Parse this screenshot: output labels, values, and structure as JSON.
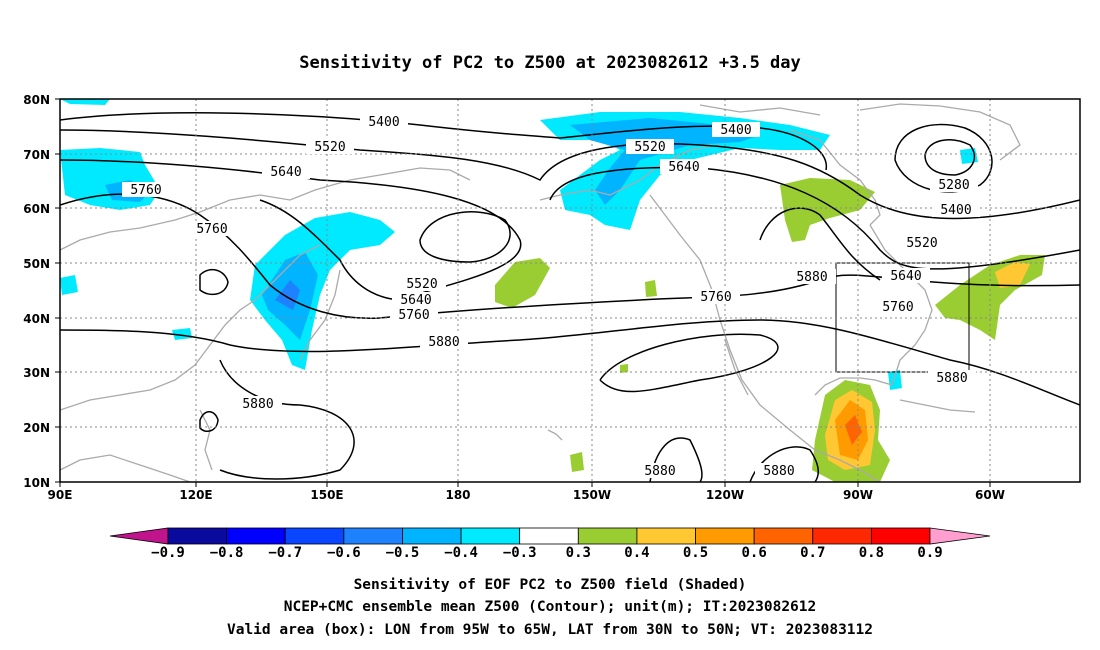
{
  "title": "Sensitivity of PC2 to Z500 at 2023082612 +3.5 day",
  "lat_ticks": [
    "80N",
    "70N",
    "60N",
    "50N",
    "40N",
    "30N",
    "20N",
    "10N"
  ],
  "lon_ticks": [
    "90E",
    "120E",
    "150E",
    "180",
    "150W",
    "120W",
    "90W",
    "60W"
  ],
  "contour_labels": {
    "c5400a": "5400",
    "c5400b": "5400",
    "c5400c": "5400",
    "c5520a": "5520",
    "c5520b": "5520",
    "c5520c": "5520",
    "c5520d": "5520",
    "c5640a": "5640",
    "c5640b": "5640",
    "c5640c": "5640",
    "c5640d": "5640",
    "c5760a": "5760",
    "c5760b": "5760",
    "c5760c": "5760",
    "c5760d": "5760",
    "c5760e": "5760",
    "c5880a": "5880",
    "c5880b": "5880",
    "c5880c": "5880",
    "c5880d": "5880",
    "c5880e": "5880",
    "c5880f": "5880",
    "c5280": "5280"
  },
  "colorbar": {
    "labels": [
      "−0.9",
      "−0.8",
      "−0.7",
      "−0.6",
      "−0.5",
      "−0.4",
      "−0.3",
      "0.3",
      "0.4",
      "0.5",
      "0.6",
      "0.7",
      "0.8",
      "0.9"
    ],
    "colors": [
      "#0a0a9e",
      "#0000ff",
      "#0a46ff",
      "#1e82ff",
      "#00b4ff",
      "#00eaff",
      "#ffffff",
      "#9acd32",
      "#ffc832",
      "#ff9b00",
      "#ff6400",
      "#ff2800",
      "#ff0000"
    ],
    "low_end_color": "#c0148c",
    "high_end_color": "#ff9ecf"
  },
  "caption": {
    "line1": "Sensitivity of EOF PC2 to Z500 field (Shaded)",
    "line2": "NCEP+CMC ensemble mean Z500 (Contour); unit(m); IT:2023082612",
    "line3": "Valid area (box): LON from 95W to 65W, LAT from 30N to 50N; VT: 2023083112"
  },
  "valid_box": {
    "lon_west": "95W",
    "lon_east": "65W",
    "lat_south": "30N",
    "lat_north": "50N"
  },
  "colors": {
    "coast": "#aaaaaa",
    "contour": "#000000",
    "grid": "#888888"
  }
}
